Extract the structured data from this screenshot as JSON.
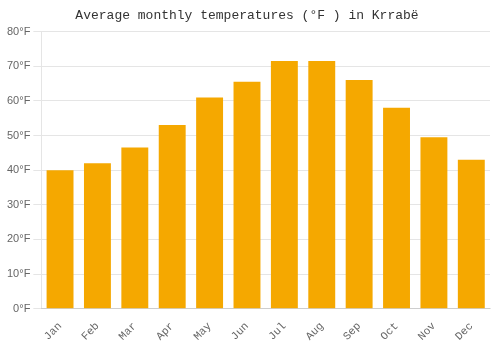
{
  "chart_data": {
    "type": "bar",
    "title": "Average monthly temperatures (°F ) in Krrabë",
    "categories": [
      "Jan",
      "Feb",
      "Mar",
      "Apr",
      "May",
      "Jun",
      "Jul",
      "Aug",
      "Sep",
      "Oct",
      "Nov",
      "Dec"
    ],
    "values": [
      40,
      42,
      46.5,
      53,
      61,
      65.5,
      71.5,
      71.5,
      66,
      58,
      49.5,
      43
    ],
    "color": "#F5A800",
    "ylim": [
      0,
      80
    ],
    "yticks": [
      {
        "value": 0,
        "label": "0°F"
      },
      {
        "value": 10,
        "label": "10°F"
      },
      {
        "value": 20,
        "label": "20°F"
      },
      {
        "value": 30,
        "label": "30°F"
      },
      {
        "value": 40,
        "label": "40°F"
      },
      {
        "value": 50,
        "label": "50°F"
      },
      {
        "value": 60,
        "label": "60°F"
      },
      {
        "value": 70,
        "label": "70°F"
      },
      {
        "value": 80,
        "label": "80°F"
      }
    ],
    "grid": true
  }
}
